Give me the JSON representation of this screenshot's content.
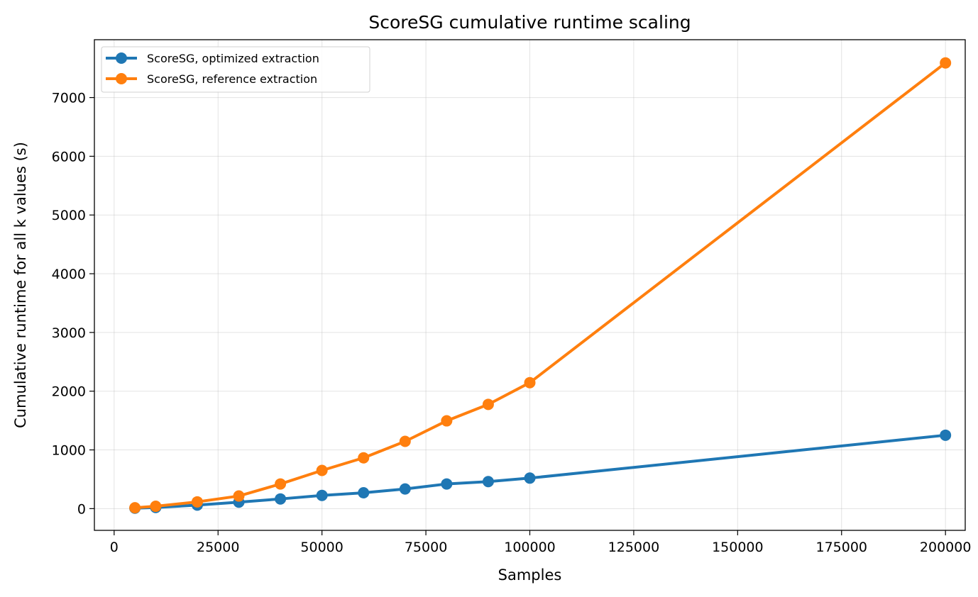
{
  "chart_data": {
    "type": "line",
    "title": "ScoreSG cumulative runtime scaling",
    "xlabel": "Samples",
    "ylabel": "Cumulative runtime for all k values (s)",
    "xlim": [
      -4750,
      204750
    ],
    "ylim": [
      -370,
      7985
    ],
    "xticks": [
      0,
      25000,
      50000,
      75000,
      100000,
      125000,
      150000,
      175000,
      200000
    ],
    "yticks": [
      0,
      1000,
      2000,
      3000,
      4000,
      5000,
      6000,
      7000
    ],
    "grid": true,
    "legend_position": "top-left",
    "x": [
      5000,
      10000,
      20000,
      30000,
      40000,
      50000,
      60000,
      70000,
      80000,
      90000,
      100000,
      200000
    ],
    "series": [
      {
        "name": "ScoreSG, optimized extraction",
        "color": "#1f77b4",
        "values": [
          8,
          20,
          60,
          110,
          165,
          225,
          270,
          335,
          420,
          460,
          520,
          1250
        ]
      },
      {
        "name": "ScoreSG, reference extraction",
        "color": "#ff7f0e",
        "values": [
          15,
          40,
          115,
          215,
          420,
          650,
          865,
          1145,
          1495,
          1775,
          2145,
          7590
        ]
      }
    ]
  }
}
